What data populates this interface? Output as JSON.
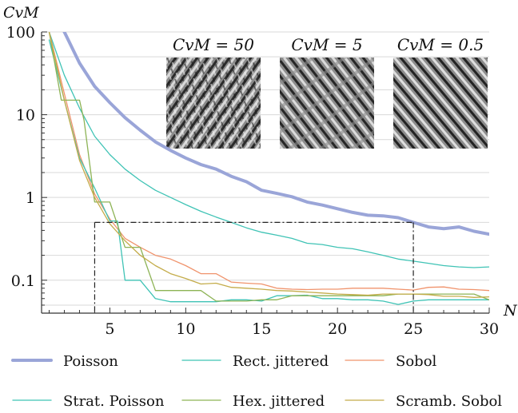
{
  "chart_data": {
    "type": "line",
    "title": "",
    "ylabel": "CvM",
    "xlabel": "N",
    "yscale": "log",
    "xlim": [
      0.5,
      30
    ],
    "ylim": [
      0.04,
      100
    ],
    "grid": "horizontal",
    "legend_position": "bottom",
    "x_ticks": [
      "5",
      "10",
      "15",
      "20",
      "25",
      "30"
    ],
    "y_ticks": [
      "0.1",
      "1",
      "10",
      "100"
    ],
    "colors": {
      "poisson": "#9aa5d8",
      "rect_jittered": "#3fc3b5",
      "sobol": "#f0936c",
      "strat_poisson": "#3fc3b5",
      "hex_jittered": "#8db355",
      "scramb_sobol": "#c4ac4a",
      "grid": "#d9d9d9",
      "axis": "#333333",
      "reference": "#222222"
    },
    "reference_lines": {
      "vertical_x": [
        4,
        25
      ],
      "horizontal_y": 0.5
    },
    "insets": [
      {
        "label": "CvM = 50",
        "name": "inset-cvm-50"
      },
      {
        "label": "CvM = 5",
        "name": "inset-cvm-5"
      },
      {
        "label": "CvM = 0.5",
        "name": "inset-cvm-05"
      }
    ],
    "series": [
      {
        "name": "Poisson",
        "color": "#9aa5d8",
        "width": 4,
        "x": [
          1,
          2,
          3,
          4,
          5,
          6,
          7,
          8,
          9,
          10,
          11,
          12,
          13,
          14,
          15,
          16,
          17,
          18,
          19,
          20,
          21,
          22,
          23,
          24,
          25,
          26,
          27,
          28,
          29,
          30
        ],
        "y": [
          200,
          100,
          42,
          22,
          14,
          9.2,
          6.5,
          4.7,
          3.7,
          3.0,
          2.5,
          2.2,
          1.8,
          1.55,
          1.22,
          1.12,
          1.02,
          0.88,
          0.81,
          0.73,
          0.66,
          0.61,
          0.6,
          0.57,
          0.5,
          0.44,
          0.42,
          0.44,
          0.39,
          0.36
        ]
      },
      {
        "name": "Rect. jittered",
        "color": "#3fc3b5",
        "width": 1.3,
        "x": [
          1,
          2,
          3,
          4,
          5,
          6,
          7,
          8,
          9,
          10,
          11,
          12,
          13,
          14,
          15,
          16,
          17,
          18,
          19,
          20,
          21,
          22,
          23,
          24,
          25,
          26,
          27,
          28,
          29,
          30
        ],
        "y": [
          100,
          30,
          12,
          5.5,
          3.3,
          2.2,
          1.6,
          1.22,
          1.0,
          0.82,
          0.68,
          0.58,
          0.5,
          0.43,
          0.38,
          0.35,
          0.32,
          0.28,
          0.27,
          0.25,
          0.24,
          0.22,
          0.2,
          0.18,
          0.17,
          0.16,
          0.15,
          0.145,
          0.142,
          0.145
        ]
      },
      {
        "name": "Sobol",
        "color": "#f0936c",
        "width": 1.3,
        "x": [
          1,
          2,
          3,
          4,
          5,
          6,
          7,
          8,
          9,
          10,
          11,
          12,
          13,
          14,
          15,
          16,
          17,
          18,
          19,
          20,
          21,
          22,
          23,
          24,
          25,
          26,
          27,
          28,
          29,
          30
        ],
        "y": [
          100,
          18,
          3.3,
          1.1,
          0.55,
          0.32,
          0.25,
          0.2,
          0.18,
          0.15,
          0.12,
          0.12,
          0.095,
          0.092,
          0.09,
          0.08,
          0.078,
          0.077,
          0.078,
          0.078,
          0.08,
          0.08,
          0.08,
          0.078,
          0.076,
          0.082,
          0.083,
          0.078,
          0.077,
          0.075
        ]
      },
      {
        "name": "Strat. Poisson",
        "color": "#3fc3b5",
        "width": 1.3,
        "x": [
          1,
          2,
          3,
          4,
          5,
          5.5,
          6,
          7,
          8,
          9,
          10,
          11,
          12,
          13,
          14,
          15,
          16,
          17,
          18,
          19,
          20,
          21,
          22,
          23,
          24,
          25,
          26,
          27,
          28,
          29,
          30
        ],
        "y": [
          80,
          15,
          3.0,
          1.3,
          0.52,
          0.52,
          0.1,
          0.1,
          0.06,
          0.055,
          0.055,
          0.055,
          0.055,
          0.058,
          0.058,
          0.056,
          0.065,
          0.065,
          0.066,
          0.06,
          0.06,
          0.058,
          0.058,
          0.056,
          0.051,
          0.056,
          0.058,
          0.058,
          0.058,
          0.058,
          0.058
        ]
      },
      {
        "name": "Hex. jittered",
        "color": "#8db355",
        "width": 1.3,
        "x": [
          1,
          1.8,
          2,
          3,
          3.3,
          4,
          5,
          6,
          7,
          8,
          9,
          10,
          11,
          12,
          13,
          14,
          15,
          16,
          17,
          18,
          19,
          20,
          21,
          22,
          23,
          24,
          25,
          26,
          27,
          28,
          29,
          30
        ],
        "y": [
          100,
          15,
          15,
          15,
          8.5,
          0.88,
          0.88,
          0.25,
          0.25,
          0.075,
          0.075,
          0.075,
          0.075,
          0.056,
          0.056,
          0.056,
          0.058,
          0.058,
          0.065,
          0.065,
          0.065,
          0.065,
          0.065,
          0.065,
          0.065,
          0.068,
          0.068,
          0.068,
          0.068,
          0.068,
          0.068,
          0.058
        ]
      },
      {
        "name": "Scramb. Sobol",
        "color": "#c4ac4a",
        "width": 1.3,
        "x": [
          1,
          2,
          3,
          4,
          5,
          6,
          7,
          8,
          9,
          10,
          11,
          12,
          13,
          14,
          15,
          16,
          17,
          18,
          19,
          20,
          21,
          22,
          23,
          24,
          25,
          26,
          27,
          28,
          29,
          30
        ],
        "y": [
          100,
          15,
          2.8,
          1.0,
          0.48,
          0.3,
          0.2,
          0.15,
          0.12,
          0.105,
          0.09,
          0.092,
          0.082,
          0.08,
          0.078,
          0.075,
          0.074,
          0.072,
          0.07,
          0.068,
          0.067,
          0.066,
          0.068,
          0.068,
          0.068,
          0.067,
          0.064,
          0.064,
          0.062,
          0.063
        ]
      }
    ]
  },
  "legend": [
    {
      "label": "Poisson",
      "color": "#9aa5d8",
      "width": 4
    },
    {
      "label": "Rect. jittered",
      "color": "#3fc3b5",
      "width": 1.3
    },
    {
      "label": "Sobol",
      "color": "#f0936c",
      "width": 1.3
    },
    {
      "label": "Strat. Poisson",
      "color": "#3fc3b5",
      "width": 1.3
    },
    {
      "label": "Hex. jittered",
      "color": "#8db355",
      "width": 1.3
    },
    {
      "label": "Scramb. Sobol",
      "color": "#c4ac4a",
      "width": 1.3
    }
  ]
}
